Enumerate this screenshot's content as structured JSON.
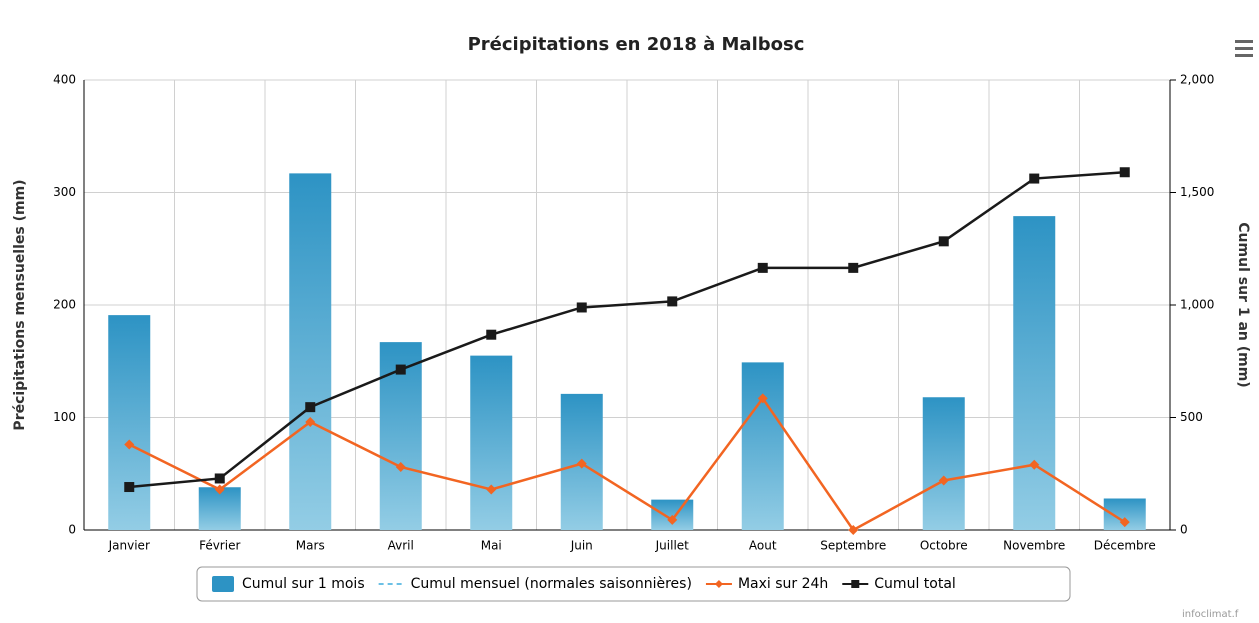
{
  "chart_data": {
    "type": "bar",
    "title": "Précipitations en 2018 à Malbosc",
    "y_label": "Précipitations mensuelles (mm)",
    "y2_label": "Cumul sur 1 an (mm)",
    "credit": "infoclimat.f",
    "categories": [
      "Janvier",
      "Février",
      "Mars",
      "Avril",
      "Mai",
      "Juin",
      "Juillet",
      "Aout",
      "Septembre",
      "Octobre",
      "Novembre",
      "Décembre"
    ],
    "ylim": [
      0,
      400
    ],
    "yticks": [
      0,
      100,
      200,
      300,
      400
    ],
    "y2lim": [
      0,
      2000
    ],
    "y2ticks": [
      0,
      500,
      {
        "value": 1000,
        "label": "1,000"
      },
      {
        "value": 1500,
        "label": "1,500"
      },
      {
        "value": 2000,
        "label": "2,000"
      }
    ],
    "grid": true,
    "legend": "bottom",
    "series": [
      {
        "name": "Cumul sur 1 mois",
        "type": "bar",
        "color": "#2d93c4",
        "values": [
          191,
          38,
          317,
          167,
          155,
          121,
          27,
          149,
          0,
          118,
          279,
          28
        ]
      },
      {
        "name": "Cumul mensuel (normales saisonnières)",
        "type": "dashed",
        "color": "#6cc0e5",
        "values": [
          null,
          null,
          null,
          null,
          null,
          null,
          null,
          null,
          null,
          null,
          null,
          null
        ]
      },
      {
        "name": "Maxi sur 24h",
        "type": "line",
        "color": "#f26522",
        "values": [
          76,
          36,
          96,
          56,
          36,
          59,
          9,
          117,
          0,
          44,
          58,
          7
        ]
      },
      {
        "name": "Cumul total",
        "type": "line",
        "axis": "y2",
        "color": "#1a1a1a",
        "values": [
          191,
          229,
          546,
          713,
          868,
          989,
          1016,
          1165,
          1165,
          1283,
          1562,
          1590
        ]
      }
    ]
  }
}
